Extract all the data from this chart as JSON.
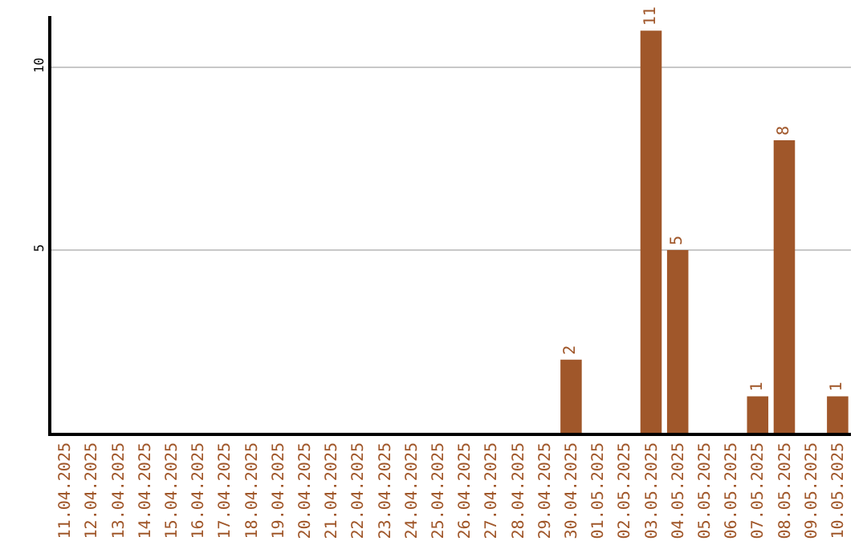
{
  "chart_data": {
    "type": "bar",
    "categories": [
      "11.04.2025",
      "12.04.2025",
      "13.04.2025",
      "14.04.2025",
      "15.04.2025",
      "16.04.2025",
      "17.04.2025",
      "18.04.2025",
      "19.04.2025",
      "20.04.2025",
      "21.04.2025",
      "22.04.2025",
      "23.04.2025",
      "24.04.2025",
      "25.04.2025",
      "26.04.2025",
      "27.04.2025",
      "28.04.2025",
      "29.04.2025",
      "30.04.2025",
      "01.05.2025",
      "02.05.2025",
      "03.05.2025",
      "04.05.2025",
      "05.05.2025",
      "06.05.2025",
      "07.05.2025",
      "08.05.2025",
      "09.05.2025",
      "10.05.2025"
    ],
    "values": [
      0,
      0,
      0,
      0,
      0,
      0,
      0,
      0,
      0,
      0,
      0,
      0,
      0,
      0,
      0,
      0,
      0,
      0,
      0,
      2,
      0,
      0,
      11,
      5,
      0,
      0,
      1,
      8,
      0,
      1
    ],
    "value_labels": [
      null,
      null,
      null,
      null,
      null,
      null,
      null,
      null,
      null,
      null,
      null,
      null,
      null,
      null,
      null,
      null,
      null,
      null,
      null,
      "2",
      null,
      null,
      "11",
      "5",
      null,
      null,
      "1",
      "8",
      null,
      "1"
    ],
    "color": "#a0572a",
    "ylim": [
      0,
      11.4
    ],
    "yticks": [
      5,
      10
    ],
    "grid": "y",
    "legend": false
  }
}
